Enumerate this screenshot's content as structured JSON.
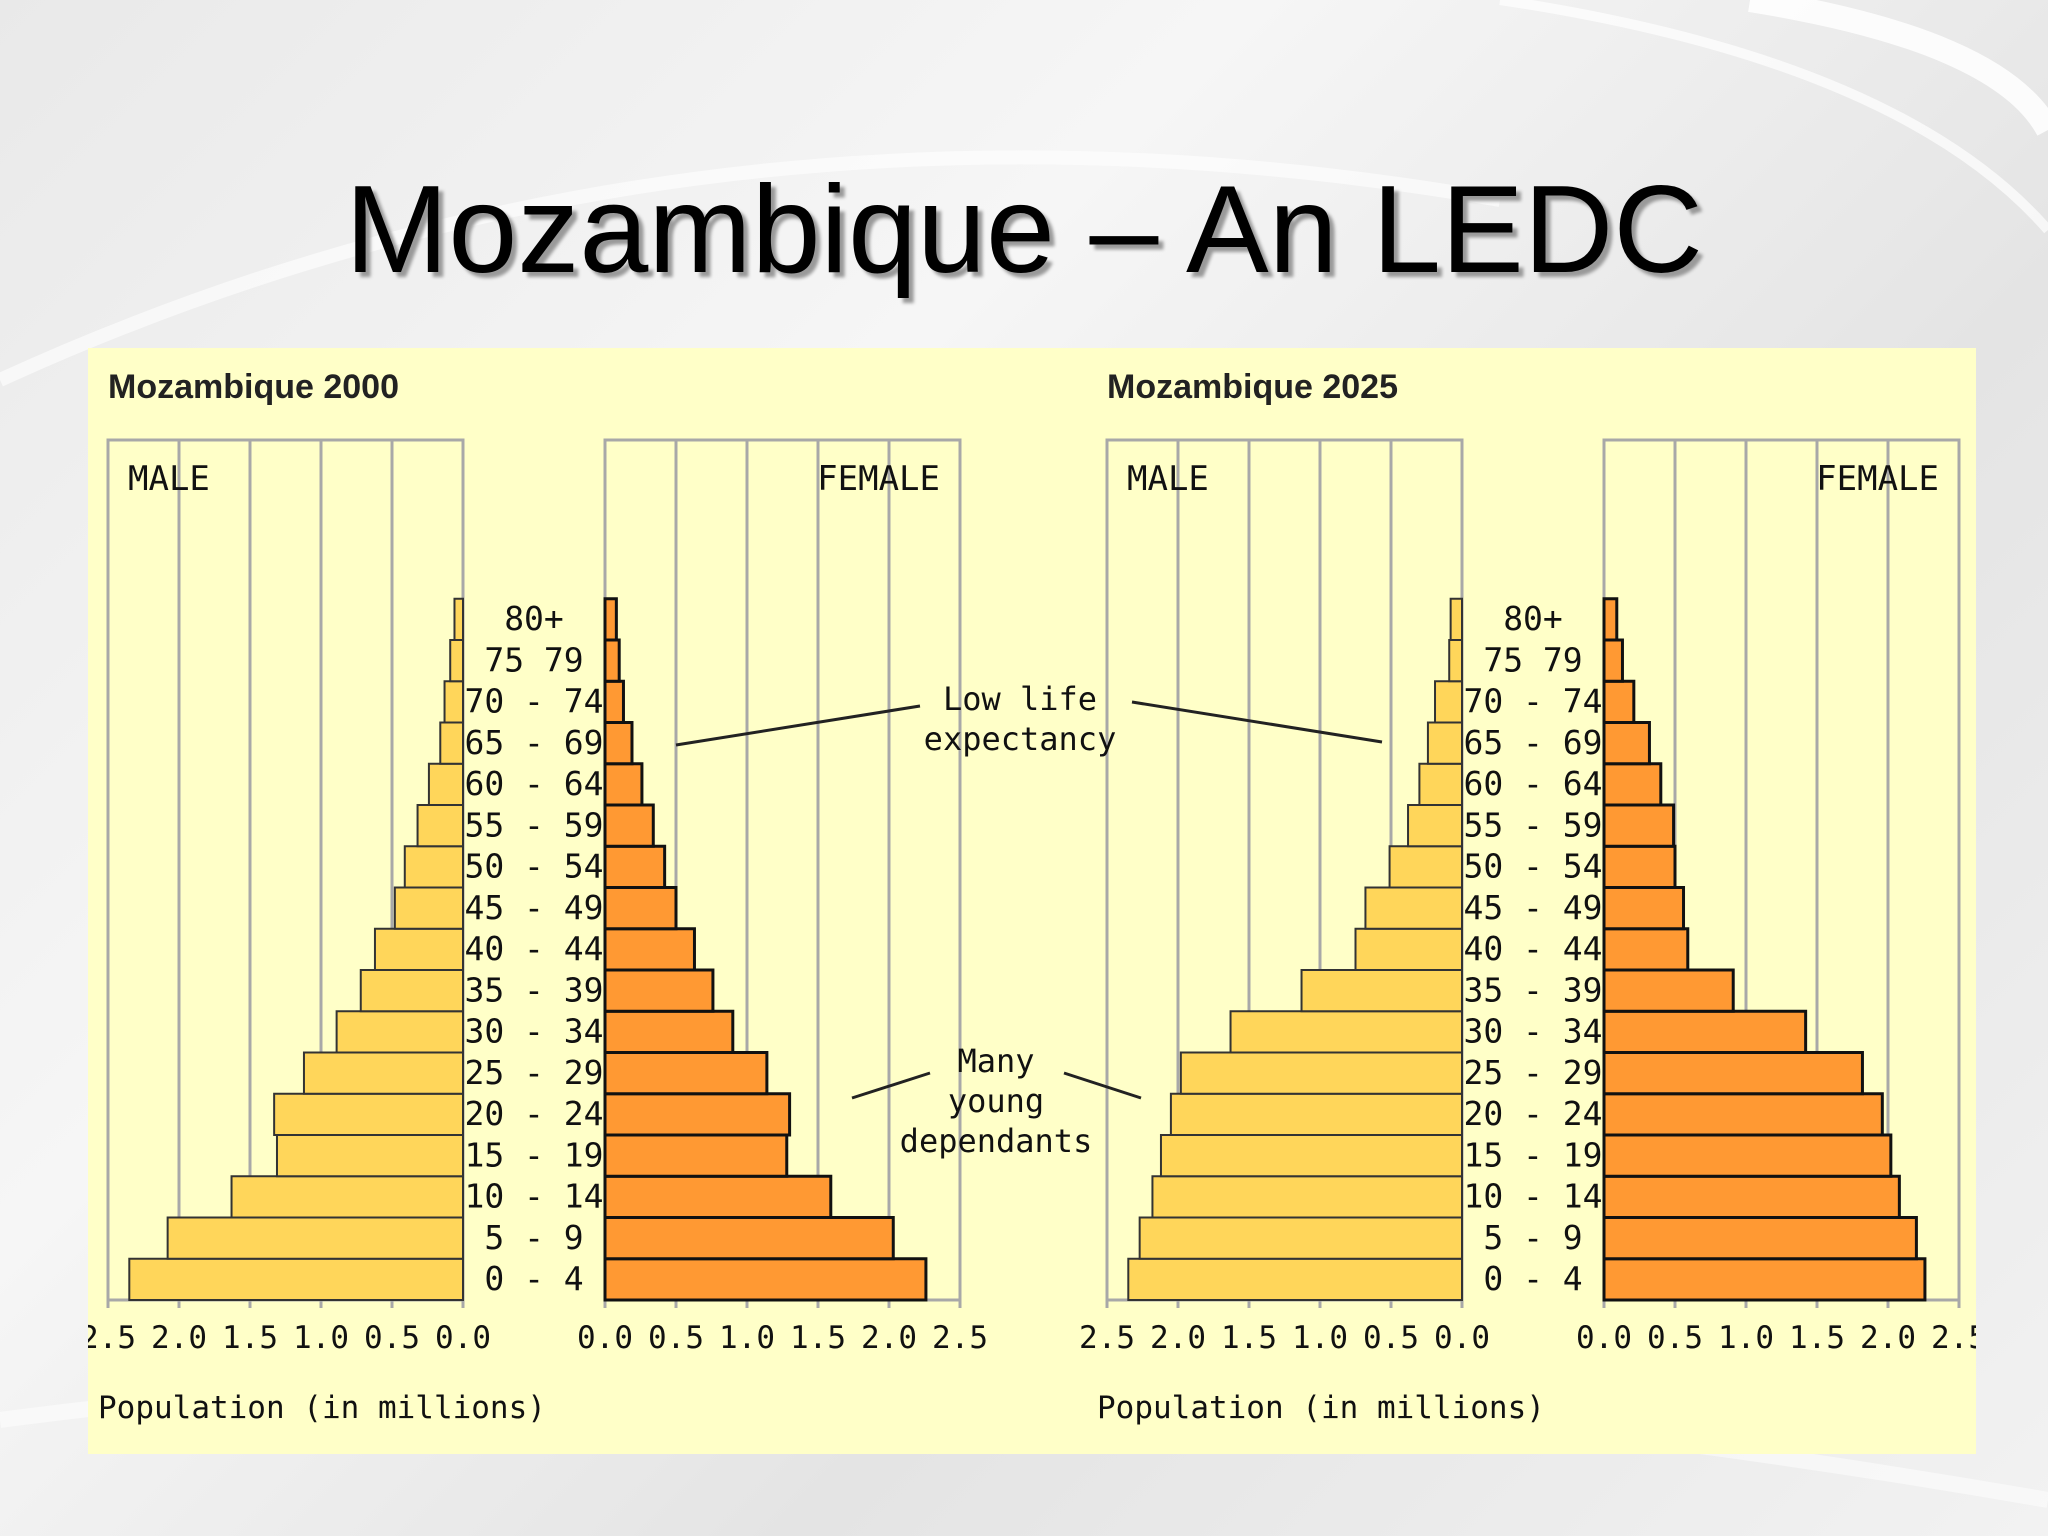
{
  "slide": {
    "title": "Mozambique – An LEDC"
  },
  "colors": {
    "male_bar": "#ffd65a",
    "female_bar": "#ff9933",
    "panel_bg": "#ffffc8",
    "grid": "#a8a8a8"
  },
  "annotations": {
    "low_life": [
      "Low life",
      "expectancy"
    ],
    "young": [
      "Many",
      "young",
      "dependants"
    ]
  },
  "chart_data": [
    {
      "type": "bar",
      "title": "Mozambique 2000",
      "male_label": "MALE",
      "female_label": "FEMALE",
      "xlabel": "Population (in millions)",
      "xlim": [
        0,
        2.5
      ],
      "ticks": [
        "2.5",
        "2.0",
        "1.5",
        "1.0",
        "0.5",
        "0.0"
      ],
      "ticks_right": [
        "0.0",
        "0.5",
        "1.0",
        "1.5",
        "2.0",
        "2.5"
      ],
      "categories": [
        "0 - 4",
        "5 - 9",
        "10 - 14",
        "15 - 19",
        "20 - 24",
        "25 - 29",
        "30 - 34",
        "35 - 39",
        "40 - 44",
        "45 - 49",
        "50 - 54",
        "55 - 59",
        "60 - 64",
        "65 - 69",
        "70 - 74",
        "75 79",
        "80+"
      ],
      "series": [
        {
          "name": "MALE",
          "values": [
            2.35,
            2.08,
            1.63,
            1.31,
            1.33,
            1.12,
            0.89,
            0.72,
            0.62,
            0.48,
            0.41,
            0.32,
            0.24,
            0.16,
            0.13,
            0.09,
            0.06
          ]
        },
        {
          "name": "FEMALE",
          "values": [
            2.26,
            2.03,
            1.59,
            1.28,
            1.3,
            1.14,
            0.9,
            0.76,
            0.63,
            0.5,
            0.42,
            0.34,
            0.26,
            0.19,
            0.13,
            0.1,
            0.08
          ]
        }
      ]
    },
    {
      "type": "bar",
      "title": "Mozambique 2025",
      "male_label": "MALE",
      "female_label": "FEMALE",
      "xlabel": "Population (in millions)",
      "xlim": [
        0,
        2.5
      ],
      "ticks": [
        "2.5",
        "2.0",
        "1.5",
        "1.0",
        "0.5",
        "0.0"
      ],
      "ticks_right": [
        "0.0",
        "0.5",
        "1.0",
        "1.5",
        "2.0",
        "2.5"
      ],
      "categories": [
        "0 - 4",
        "5 - 9",
        "10 - 14",
        "15 - 19",
        "20 - 24",
        "25 - 29",
        "30 - 34",
        "35 - 39",
        "40 - 44",
        "45 - 49",
        "50 - 54",
        "55 - 59",
        "60 - 64",
        "65 - 69",
        "70 - 74",
        "75 79",
        "80+"
      ],
      "series": [
        {
          "name": "MALE",
          "values": [
            2.35,
            2.27,
            2.18,
            2.12,
            2.05,
            1.98,
            1.63,
            1.13,
            0.75,
            0.68,
            0.51,
            0.38,
            0.3,
            0.24,
            0.19,
            0.09,
            0.08
          ]
        },
        {
          "name": "FEMALE",
          "values": [
            2.26,
            2.2,
            2.08,
            2.02,
            1.96,
            1.82,
            1.42,
            0.91,
            0.59,
            0.56,
            0.5,
            0.49,
            0.4,
            0.32,
            0.21,
            0.13,
            0.09
          ]
        }
      ]
    }
  ]
}
